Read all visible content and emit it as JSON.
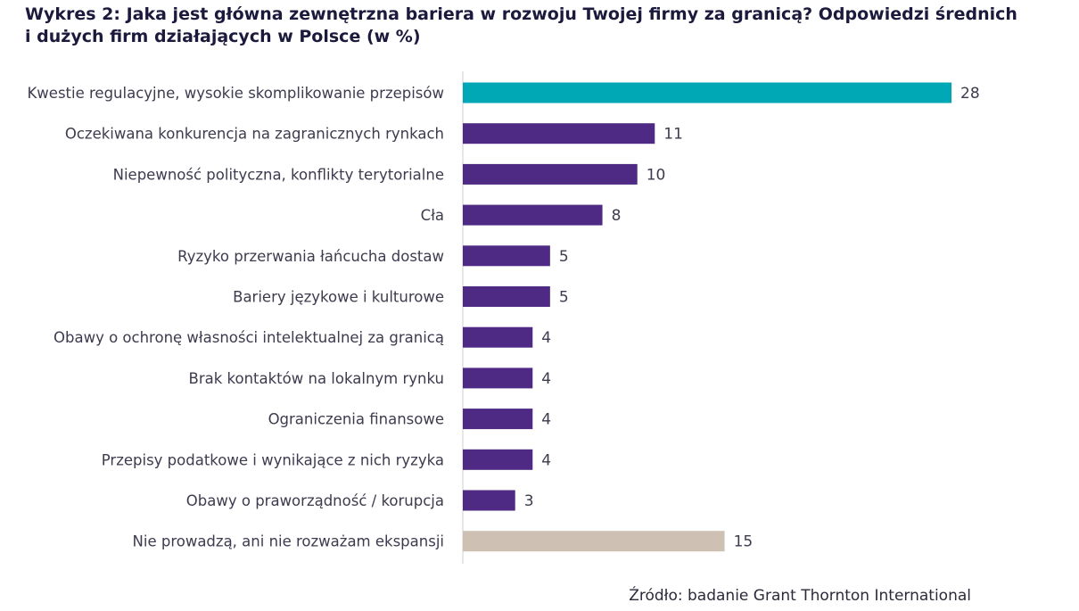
{
  "title_lines": [
    "Wykres 2: Jaka jest główna zewnętrzna bariera w rozwoju Twojej firmy za granicą? Odpowiedzi średnich",
    "i dużych firm działających w Polsce (w %)"
  ],
  "source": "Źródło: badanie Grant Thornton International",
  "colors": {
    "highlight": "#00a7b4",
    "primary": "#4e2a84",
    "neutral": "#cec1b4",
    "axis": "#cfcfcf"
  },
  "chart_data": {
    "type": "bar",
    "orientation": "horizontal",
    "title": "Wykres 2: Jaka jest główna zewnętrzna bariera w rozwoju Twojej firmy za granicą? Odpowiedzi średnich i dużych firm działających w Polsce (w %)",
    "xlabel": "",
    "ylabel": "",
    "xlim": [
      0,
      28
    ],
    "grid": false,
    "categories": [
      "Kwestie regulacyjne, wysokie skomplikowanie przepisów",
      "Oczekiwana konkurencja na zagranicznych rynkach",
      "Niepewność polityczna, konflikty terytorialne",
      "Cła",
      "Ryzyko przerwania łańcucha dostaw",
      "Bariery językowe i kulturowe",
      "Obawy o ochronę własności intelektualnej za granicą",
      "Brak kontaktów na lokalnym rynku",
      "Ograniczenia finansowe",
      "Przepisy podatkowe i wynikające z nich ryzyka",
      "Obawy o praworządność / korupcja",
      "Nie prowadzą, ani nie rozważam ekspansji"
    ],
    "values": [
      28,
      11,
      10,
      8,
      5,
      5,
      4,
      4,
      4,
      4,
      3,
      15
    ],
    "bar_colors": [
      "highlight",
      "primary",
      "primary",
      "primary",
      "primary",
      "primary",
      "primary",
      "primary",
      "primary",
      "primary",
      "primary",
      "neutral"
    ]
  }
}
